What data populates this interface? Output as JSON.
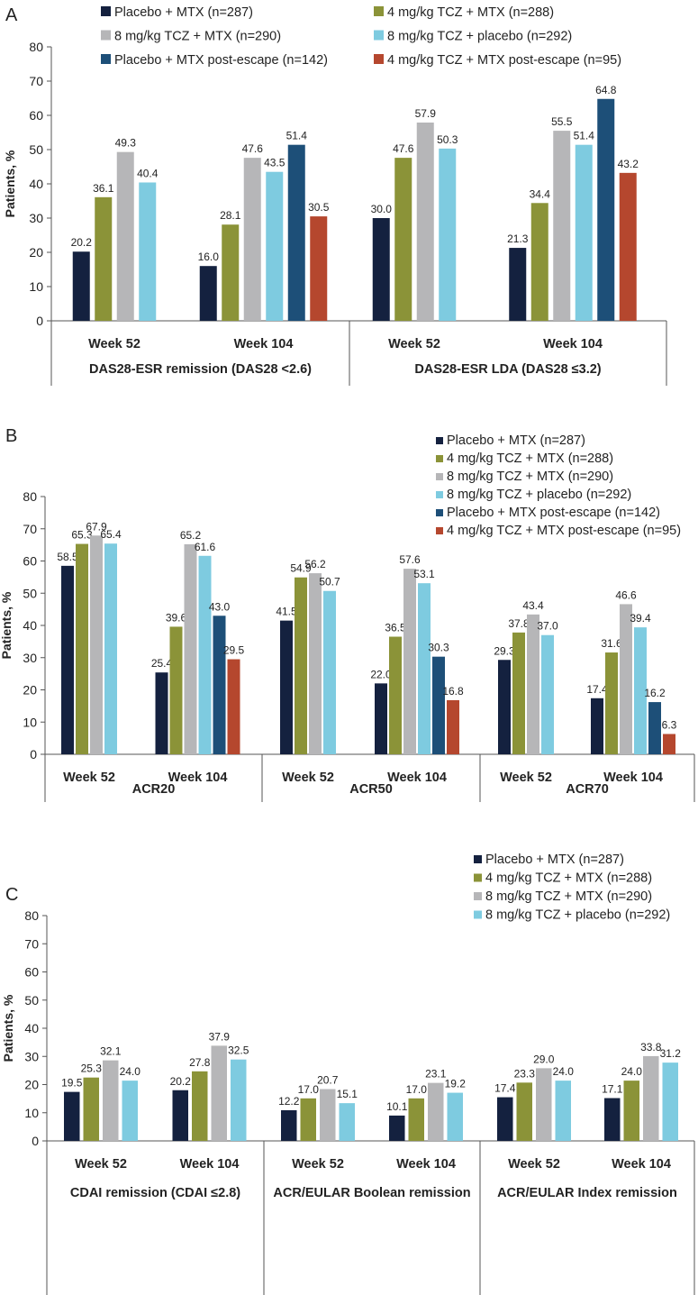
{
  "colors": {
    "placebo_mtx": "#14213f",
    "tcz4_mtx": "#8b9338",
    "tcz8_mtx": "#b6b6b8",
    "tcz8_placebo": "#7ecbe0",
    "placebo_mtx_escape": "#1d4f78",
    "tcz4_mtx_escape": "#b5472e"
  },
  "chart_data": [
    {
      "panel": "A",
      "type": "bar",
      "ylabel": "Patients, %",
      "ylim": [
        0,
        80
      ],
      "yticks": [
        "0",
        "10",
        "20",
        "30",
        "40",
        "50",
        "60",
        "70",
        "80"
      ],
      "legend": [
        {
          "label": "Placebo + MTX (n=287)",
          "color": "placebo_mtx"
        },
        {
          "label": "4 mg/kg TCZ + MTX (n=288)",
          "color": "tcz4_mtx"
        },
        {
          "label": "8 mg/kg TCZ + MTX (n=290)",
          "color": "tcz8_mtx"
        },
        {
          "label": "8 mg/kg TCZ + placebo (n=292)",
          "color": "tcz8_placebo"
        },
        {
          "label": "Placebo + MTX post-escape (n=142)",
          "color": "placebo_mtx_escape"
        },
        {
          "label": "4 mg/kg TCZ + MTX post-escape (n=95)",
          "color": "tcz4_mtx_escape"
        }
      ],
      "groups": [
        {
          "label": "DAS28-ESR remission (DAS28 <2.6)",
          "subgroups": [
            {
              "label": "Week 52",
              "bars": [
                [
                  "placebo_mtx",
                  20.2
                ],
                [
                  "tcz4_mtx",
                  36.1
                ],
                [
                  "tcz8_mtx",
                  49.3
                ],
                [
                  "tcz8_placebo",
                  40.4
                ]
              ]
            },
            {
              "label": "Week 104",
              "bars": [
                [
                  "placebo_mtx",
                  16.0
                ],
                [
                  "tcz4_mtx",
                  28.1
                ],
                [
                  "tcz8_mtx",
                  47.6
                ],
                [
                  "tcz8_placebo",
                  43.5
                ],
                [
                  "placebo_mtx_escape",
                  51.4
                ],
                [
                  "tcz4_mtx_escape",
                  30.5
                ]
              ]
            }
          ]
        },
        {
          "label": "DAS28-ESR LDA (DAS28 ≤3.2)",
          "subgroups": [
            {
              "label": "Week 52",
              "bars": [
                [
                  "placebo_mtx",
                  30.0
                ],
                [
                  "tcz4_mtx",
                  47.6
                ],
                [
                  "tcz8_mtx",
                  57.9
                ],
                [
                  "tcz8_placebo",
                  50.3
                ]
              ]
            },
            {
              "label": "Week 104",
              "bars": [
                [
                  "placebo_mtx",
                  21.3
                ],
                [
                  "tcz4_mtx",
                  34.4
                ],
                [
                  "tcz8_mtx",
                  55.5
                ],
                [
                  "tcz8_placebo",
                  51.4
                ],
                [
                  "placebo_mtx_escape",
                  64.8
                ],
                [
                  "tcz4_mtx_escape",
                  43.2
                ]
              ]
            }
          ]
        }
      ]
    },
    {
      "panel": "B",
      "type": "bar",
      "ylabel": "Patients, %",
      "ylim": [
        0,
        80
      ],
      "yticks": [
        "0",
        "10",
        "20",
        "30",
        "40",
        "50",
        "60",
        "70",
        "80"
      ],
      "legend": [
        {
          "label": "Placebo + MTX (n=287)",
          "color": "placebo_mtx"
        },
        {
          "label": "4 mg/kg TCZ + MTX (n=288)",
          "color": "tcz4_mtx"
        },
        {
          "label": "8 mg/kg TCZ + MTX (n=290)",
          "color": "tcz8_mtx"
        },
        {
          "label": "8 mg/kg TCZ + placebo (n=292)",
          "color": "tcz8_placebo"
        },
        {
          "label": "Placebo + MTX post-escape (n=142)",
          "color": "placebo_mtx_escape"
        },
        {
          "label": "4 mg/kg TCZ + MTX post-escape (n=95)",
          "color": "tcz4_mtx_escape"
        }
      ],
      "groups": [
        {
          "label": "ACR20",
          "subgroups": [
            {
              "label": "Week 52",
              "bars": [
                [
                  "placebo_mtx",
                  58.5
                ],
                [
                  "tcz4_mtx",
                  65.3
                ],
                [
                  "tcz8_mtx",
                  67.9
                ],
                [
                  "tcz8_placebo",
                  65.4
                ]
              ]
            },
            {
              "label": "Week 104",
              "bars": [
                [
                  "placebo_mtx",
                  25.4
                ],
                [
                  "tcz4_mtx",
                  39.6
                ],
                [
                  "tcz8_mtx",
                  65.2
                ],
                [
                  "tcz8_placebo",
                  61.6
                ],
                [
                  "placebo_mtx_escape",
                  43.0
                ],
                [
                  "tcz4_mtx_escape",
                  29.5
                ]
              ]
            }
          ]
        },
        {
          "label": "ACR50",
          "subgroups": [
            {
              "label": "Week 52",
              "bars": [
                [
                  "placebo_mtx",
                  41.5
                ],
                [
                  "tcz4_mtx",
                  54.9
                ],
                [
                  "tcz8_mtx",
                  56.2
                ],
                [
                  "tcz8_placebo",
                  50.7
                ]
              ]
            },
            {
              "label": "Week 104",
              "bars": [
                [
                  "placebo_mtx",
                  22.0
                ],
                [
                  "tcz4_mtx",
                  36.5
                ],
                [
                  "tcz8_mtx",
                  57.6
                ],
                [
                  "tcz8_placebo",
                  53.1
                ],
                [
                  "placebo_mtx_escape",
                  30.3
                ],
                [
                  "tcz4_mtx_escape",
                  16.8
                ]
              ]
            }
          ]
        },
        {
          "label": "ACR70",
          "subgroups": [
            {
              "label": "Week 52",
              "bars": [
                [
                  "placebo_mtx",
                  29.3
                ],
                [
                  "tcz4_mtx",
                  37.8
                ],
                [
                  "tcz8_mtx",
                  43.4
                ],
                [
                  "tcz8_placebo",
                  37.0
                ]
              ]
            },
            {
              "label": "Week 104",
              "bars": [
                [
                  "placebo_mtx",
                  17.4
                ],
                [
                  "tcz4_mtx",
                  31.6
                ],
                [
                  "tcz8_mtx",
                  46.6
                ],
                [
                  "tcz8_placebo",
                  39.4
                ],
                [
                  "placebo_mtx_escape",
                  16.2
                ],
                [
                  "tcz4_mtx_escape",
                  6.3
                ]
              ]
            }
          ]
        }
      ]
    },
    {
      "panel": "C",
      "type": "bar",
      "ylabel": "Patients, %",
      "ylim": [
        0,
        80
      ],
      "yticks": [
        "0",
        "10",
        "20",
        "30",
        "40",
        "50",
        "60",
        "70",
        "80"
      ],
      "legend": [
        {
          "label": "Placebo + MTX (n=287)",
          "color": "placebo_mtx"
        },
        {
          "label": "4 mg/kg TCZ + MTX (n=288)",
          "color": "tcz4_mtx"
        },
        {
          "label": "8 mg/kg TCZ + MTX (n=290)",
          "color": "tcz8_mtx"
        },
        {
          "label": "8 mg/kg TCZ + placebo (n=292)",
          "color": "tcz8_placebo"
        }
      ],
      "groups": [
        {
          "label": "CDAI remission (CDAI ≤2.8)",
          "subgroups": [
            {
              "label": "Week 52",
              "bars": [
                [
                  "placebo_mtx",
                  17.4,
                  "19.5"
                ],
                [
                  "tcz4_mtx",
                  22.5,
                  "25.3"
                ],
                [
                  "tcz8_mtx",
                  28.6,
                  "32.1"
                ],
                [
                  "tcz8_placebo",
                  21.4,
                  "24.0"
                ]
              ]
            },
            {
              "label": "Week 104",
              "bars": [
                [
                  "placebo_mtx",
                  18.0,
                  "20.2"
                ],
                [
                  "tcz4_mtx",
                  24.7,
                  "27.8"
                ],
                [
                  "tcz8_mtx",
                  33.8,
                  "37.9"
                ],
                [
                  "tcz8_placebo",
                  28.9,
                  "32.5"
                ]
              ]
            }
          ]
        },
        {
          "label": "ACR/EULAR Boolean remission",
          "subgroups": [
            {
              "label": "Week 52",
              "bars": [
                [
                  "placebo_mtx",
                  10.9,
                  "12.2"
                ],
                [
                  "tcz4_mtx",
                  15.1,
                  "17.0"
                ],
                [
                  "tcz8_mtx",
                  18.4,
                  "20.7"
                ],
                [
                  "tcz8_placebo",
                  13.4,
                  "15.1"
                ]
              ]
            },
            {
              "label": "Week 104",
              "bars": [
                [
                  "placebo_mtx",
                  9.0,
                  "10.1"
                ],
                [
                  "tcz4_mtx",
                  15.1,
                  "17.0"
                ],
                [
                  "tcz8_mtx",
                  20.6,
                  "23.1"
                ],
                [
                  "tcz8_placebo",
                  17.1,
                  "19.2"
                ]
              ]
            }
          ]
        },
        {
          "label": "ACR/EULAR Index remission",
          "subgroups": [
            {
              "label": "Week 52",
              "bars": [
                [
                  "placebo_mtx",
                  15.5,
                  "17.4"
                ],
                [
                  "tcz4_mtx",
                  20.7,
                  "23.3"
                ],
                [
                  "tcz8_mtx",
                  25.8,
                  "29.0"
                ],
                [
                  "tcz8_placebo",
                  21.4,
                  "24.0"
                ]
              ]
            },
            {
              "label": "Week 104",
              "bars": [
                [
                  "placebo_mtx",
                  15.2,
                  "17.1"
                ],
                [
                  "tcz4_mtx",
                  21.4,
                  "24.0"
                ],
                [
                  "tcz8_mtx",
                  30.1,
                  "33.8"
                ],
                [
                  "tcz8_placebo",
                  27.8,
                  "31.2"
                ]
              ]
            }
          ]
        }
      ]
    }
  ]
}
